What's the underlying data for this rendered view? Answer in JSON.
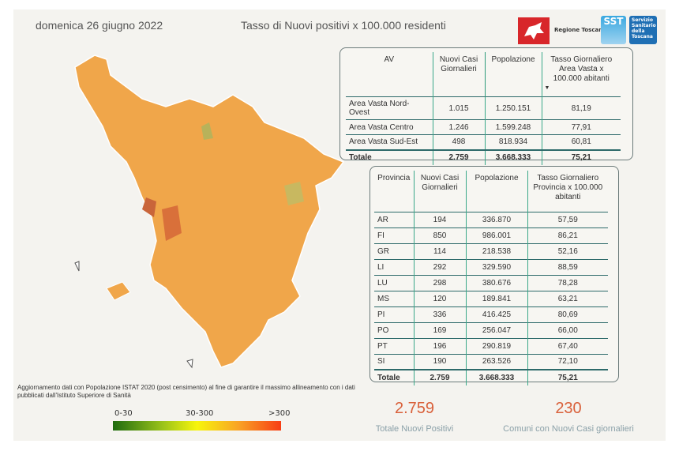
{
  "header": {
    "date": "domenica 26 giugno 2022",
    "title": "Tasso di Nuovi positivi x 100.000 residenti"
  },
  "logos": {
    "regione": "Regione Toscana",
    "sst": "SST",
    "sst_text": "Servizio Sanitario della Toscana"
  },
  "area_vasta_table": {
    "headers": [
      "AV",
      "Nuovi Casi Giornalieri",
      "Popolazione",
      "Tasso Giornaliero Area Vasta x 100.000 abitanti"
    ],
    "rows": [
      [
        "Area Vasta Nord-Ovest",
        "1.015",
        "1.250.151",
        "81,19"
      ],
      [
        "Area Vasta Centro",
        "1.246",
        "1.599.248",
        "77,91"
      ],
      [
        "Area Vasta Sud-Est",
        "498",
        "818.934",
        "60,81"
      ]
    ],
    "total": [
      "Totale",
      "2.759",
      "3.668.333",
      "75,21"
    ]
  },
  "province_table": {
    "headers": [
      "Provincia",
      "Nuovi Casi Giornalieri",
      "Popolazione",
      "Tasso Giornaliero Provincia x 100.000 abitanti"
    ],
    "rows": [
      [
        "AR",
        "194",
        "336.870",
        "57,59"
      ],
      [
        "FI",
        "850",
        "986.001",
        "86,21"
      ],
      [
        "GR",
        "114",
        "218.538",
        "52,16"
      ],
      [
        "LI",
        "292",
        "329.590",
        "88,59"
      ],
      [
        "LU",
        "298",
        "380.676",
        "78,28"
      ],
      [
        "MS",
        "120",
        "189.841",
        "63,21"
      ],
      [
        "PI",
        "336",
        "416.425",
        "80,69"
      ],
      [
        "PO",
        "169",
        "256.047",
        "66,00"
      ],
      [
        "PT",
        "196",
        "290.819",
        "67,40"
      ],
      [
        "SI",
        "190",
        "263.526",
        "72,10"
      ]
    ],
    "total": [
      "Totale",
      "2.759",
      "3.668.333",
      "75,21"
    ]
  },
  "note": "Aggiornamento dati con Popolazione ISTAT 2020 (post censimento) al fine di garantire il massimo allineamento con i dati pubblicati dall'Istituto Superiore di Sanità",
  "legend": {
    "low": "0-30",
    "mid": "30-300",
    "high": ">300",
    "colors": [
      "#1e6b0f",
      "#f7f50c",
      "#f73d14"
    ]
  },
  "kpis": [
    {
      "value": "2.759",
      "label": "Totale Nuovi Positivi"
    },
    {
      "value": "230",
      "label": "Comuni con Nuovi Casi giornalieri"
    }
  ],
  "map": {
    "fill": "#f0a64a",
    "accent": "#d9703a"
  }
}
